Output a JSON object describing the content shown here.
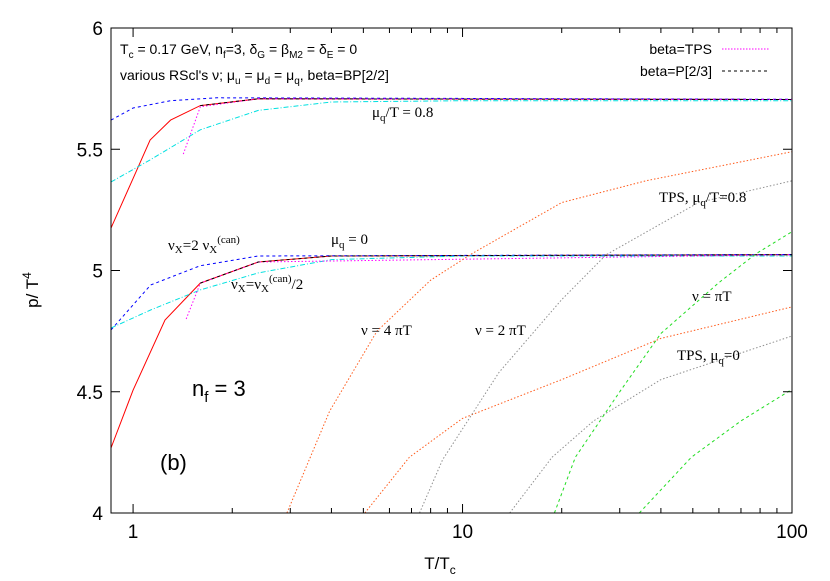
{
  "chart_data": {
    "type": "line",
    "title": "",
    "xlabel": {
      "main": "T/T",
      "sub": "c"
    },
    "ylabel": {
      "main": "p/ T",
      "sup": "4"
    },
    "xscale": "log",
    "xlim": [
      0.857,
      100
    ],
    "ylim": [
      4,
      6
    ],
    "x_ticks": [
      {
        "v": 1,
        "label": "1"
      },
      {
        "v": 10,
        "label": "10"
      },
      {
        "v": 100,
        "label": "100"
      }
    ],
    "y_ticks": [
      {
        "v": 4,
        "label": "4"
      },
      {
        "v": 4.5,
        "label": "4.5"
      },
      {
        "v": 5,
        "label": "5"
      },
      {
        "v": 5.5,
        "label": "5.5"
      },
      {
        "v": 6,
        "label": "6"
      }
    ],
    "grid": false,
    "legend_position": "top-right",
    "legend": [
      {
        "label": "beta=TPS",
        "color": "#ff00ff",
        "style": "dotted"
      },
      {
        "label": "beta=P[2/3]",
        "color": "#000000",
        "style": "dashed"
      }
    ],
    "header_lines": [
      [
        "T",
        "c",
        " = 0.17 GeV, n",
        "f",
        "=3, δ",
        "G",
        " = β",
        "M2",
        " = δ",
        "E",
        " = 0"
      ],
      [
        "various RScl's ν; μ",
        "u",
        " = μ",
        "d",
        " = μ",
        "q",
        ", beta=BP[2/2]"
      ]
    ],
    "annotations": {
      "mu08": [
        "μ",
        "q",
        "/T = 0.8"
      ],
      "mu0": [
        "μ",
        "q",
        " = 0"
      ],
      "nu2x": [
        "ν",
        "X",
        "=2 ν",
        "X",
        "(can)"
      ],
      "nuhalf": [
        "ν",
        "X",
        "=ν",
        "X",
        "(can)",
        "/2"
      ],
      "nu4": "ν = 4 πT",
      "nu2": "ν = 2 πT",
      "nu1": "ν = πT",
      "tps08": [
        "TPS, μ",
        "q",
        "/T=0.8"
      ],
      "tps0": [
        "TPS, μ",
        "q",
        "=0"
      ],
      "nf": [
        "n",
        "f",
        " = 3"
      ],
      "panel": "(b)"
    },
    "series": [
      {
        "color": "#ff0000",
        "style": "solid",
        "points": [
          [
            0.857,
            5.175
          ],
          [
            1,
            5.38
          ],
          [
            1.126,
            5.538
          ],
          [
            1.3,
            5.62
          ],
          [
            1.6,
            5.68
          ],
          [
            2.4,
            5.708
          ],
          [
            100,
            5.705
          ]
        ]
      },
      {
        "color": "#0000ff",
        "style": "dashed",
        "points": [
          [
            0.857,
            5.62
          ],
          [
            1,
            5.67
          ],
          [
            1.3,
            5.7
          ],
          [
            1.8,
            5.712
          ],
          [
            100,
            5.706
          ]
        ]
      },
      {
        "color": "#00e0e0",
        "style": "dashdot",
        "points": [
          [
            0.857,
            5.365
          ],
          [
            1.126,
            5.456
          ],
          [
            1.6,
            5.58
          ],
          [
            2.4,
            5.66
          ],
          [
            4,
            5.695
          ],
          [
            10,
            5.7
          ],
          [
            100,
            5.7
          ]
        ]
      },
      {
        "color": "#ff00ff",
        "style": "dotted",
        "points": [
          [
            1.42,
            5.48
          ],
          [
            1.6,
            5.675
          ],
          [
            2.4,
            5.708
          ],
          [
            100,
            5.705
          ]
        ]
      },
      {
        "color": "#000000",
        "style": "dashed",
        "points": [
          [
            1.6,
            5.68
          ],
          [
            2.4,
            5.708
          ],
          [
            100,
            5.705
          ]
        ]
      },
      {
        "color": "#ff0000",
        "style": "solid",
        "points": [
          [
            0.857,
            4.268
          ],
          [
            1,
            4.507
          ],
          [
            1.25,
            4.796
          ],
          [
            1.6,
            4.948
          ],
          [
            2.4,
            5.035
          ],
          [
            4,
            5.06
          ],
          [
            100,
            5.065
          ]
        ]
      },
      {
        "color": "#0000ff",
        "style": "dashed",
        "points": [
          [
            0.857,
            4.755
          ],
          [
            1.13,
            4.94
          ],
          [
            1.6,
            5.02
          ],
          [
            2.4,
            5.06
          ],
          [
            100,
            5.066
          ]
        ]
      },
      {
        "color": "#00e0e0",
        "style": "dashdot",
        "points": [
          [
            0.857,
            4.763
          ],
          [
            1.13,
            4.837
          ],
          [
            1.6,
            4.92
          ],
          [
            2.4,
            4.99
          ],
          [
            4,
            5.045
          ],
          [
            10,
            5.06
          ],
          [
            100,
            5.06
          ]
        ]
      },
      {
        "color": "#ff00ff",
        "style": "dotted",
        "points": [
          [
            1.45,
            4.8
          ],
          [
            1.55,
            4.9
          ],
          [
            1.6,
            4.948
          ],
          [
            2.4,
            5.035
          ],
          [
            100,
            5.065
          ]
        ]
      },
      {
        "color": "#000000",
        "style": "dashed",
        "points": [
          [
            1.6,
            4.948
          ],
          [
            2.4,
            5.035
          ],
          [
            4,
            5.06
          ],
          [
            100,
            5.065
          ]
        ]
      },
      {
        "color": "#ff5a1a",
        "style": "dotted",
        "points": [
          [
            2.93,
            4.0
          ],
          [
            3.95,
            4.42
          ],
          [
            5.5,
            4.75
          ],
          [
            8,
            4.96
          ],
          [
            10.7,
            5.07
          ],
          [
            20,
            5.28
          ],
          [
            36,
            5.37
          ],
          [
            100,
            5.49
          ]
        ]
      },
      {
        "color": "#ff5a1a",
        "style": "dotted",
        "points": [
          [
            5.05,
            4.0
          ],
          [
            6.9,
            4.23
          ],
          [
            10,
            4.39
          ],
          [
            20,
            4.55
          ],
          [
            40,
            4.72
          ],
          [
            100,
            4.85
          ]
        ]
      },
      {
        "color": "#909090",
        "style": "dotted",
        "points": [
          [
            7.4,
            4.0
          ],
          [
            8.7,
            4.22
          ],
          [
            12.9,
            4.58
          ],
          [
            20,
            4.88
          ],
          [
            27.3,
            5.065
          ],
          [
            52,
            5.28
          ],
          [
            100,
            5.37
          ]
        ]
      },
      {
        "color": "#909090",
        "style": "dotted",
        "points": [
          [
            13.9,
            4.0
          ],
          [
            18.7,
            4.23
          ],
          [
            25,
            4.38
          ],
          [
            40,
            4.55
          ],
          [
            100,
            4.73
          ]
        ]
      },
      {
        "color": "#22dd22",
        "style": "dashed",
        "points": [
          [
            19,
            4.0
          ],
          [
            22,
            4.23
          ],
          [
            30,
            4.5
          ],
          [
            40,
            4.74
          ],
          [
            60,
            4.95
          ],
          [
            78,
            5.07
          ],
          [
            100,
            5.16
          ]
        ]
      },
      {
        "color": "#22dd22",
        "style": "dashed",
        "points": [
          [
            34.4,
            4.0
          ],
          [
            49.5,
            4.23
          ],
          [
            70,
            4.38
          ],
          [
            100,
            4.51
          ]
        ]
      }
    ]
  }
}
